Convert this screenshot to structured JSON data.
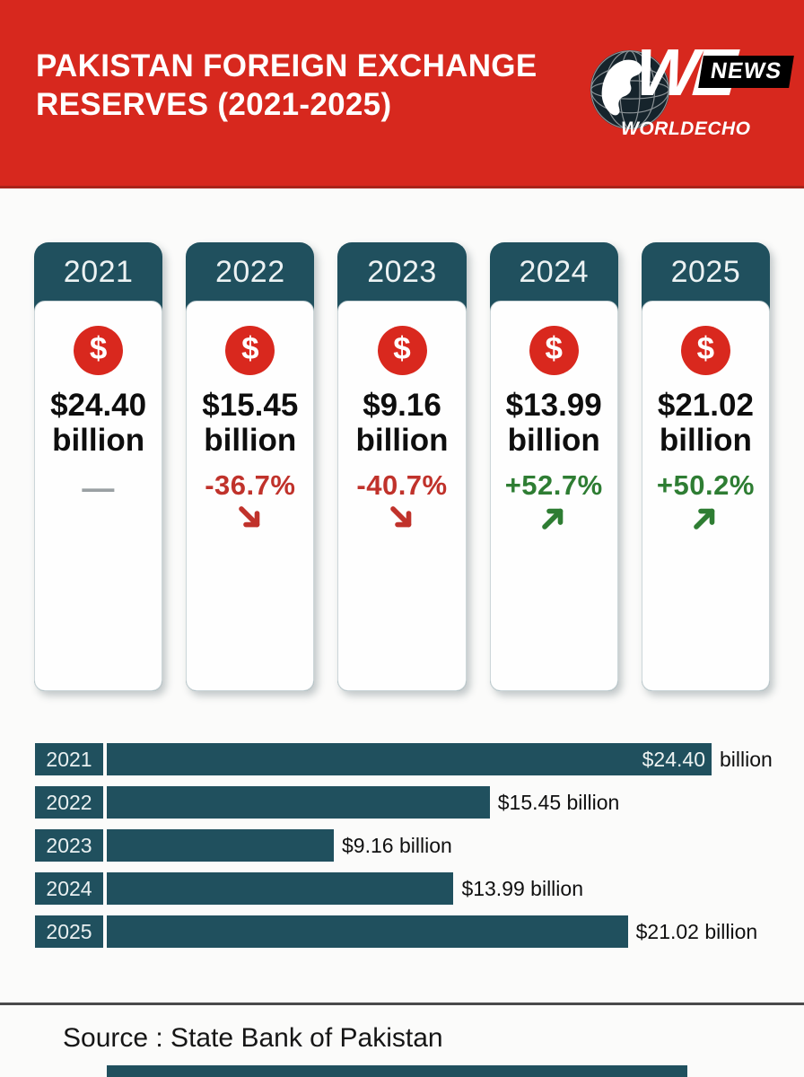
{
  "header": {
    "title": "PAKISTAN FOREIGN EXCHANGE RESERVES (2021-2025)",
    "brand": {
      "we": "WE",
      "news_badge": "NEWS",
      "name": "WORLDECHO"
    }
  },
  "cards": [
    {
      "year": "2021",
      "value": "$24.40",
      "unit": "billion",
      "change": "—",
      "arrow": "",
      "trend": "flat"
    },
    {
      "year": "2022",
      "value": "$15.45",
      "unit": "billion",
      "change": "-36.7%",
      "arrow": "↘",
      "trend": "down"
    },
    {
      "year": "2023",
      "value": "$9.16",
      "unit": "billion",
      "change": "-40.7%",
      "arrow": "↘",
      "trend": "down"
    },
    {
      "year": "2024",
      "value": "$13.99",
      "unit": "billion",
      "change": "+52.7%",
      "arrow": "↗",
      "trend": "up"
    },
    {
      "year": "2025",
      "value": "$21.02",
      "unit": "billion",
      "change": "+50.2%",
      "arrow": "↗",
      "trend": "up"
    }
  ],
  "chart_data": {
    "type": "bar",
    "orientation": "horizontal",
    "title": "",
    "categories": [
      "2021",
      "2022",
      "2023",
      "2024",
      "2025"
    ],
    "values": [
      24.4,
      15.45,
      9.16,
      13.99,
      21.02
    ],
    "unit": "USD billion",
    "xlim": [
      0,
      24.4
    ],
    "bar_color": "#20505e",
    "rows": [
      {
        "year": "2021",
        "inside_label": "$24.40",
        "outside_label": "billion"
      },
      {
        "year": "2022",
        "inside_label": "",
        "outside_label": "$15.45 billion"
      },
      {
        "year": "2023",
        "inside_label": "",
        "outside_label": "$9.16 billion"
      },
      {
        "year": "2024",
        "inside_label": "",
        "outside_label": "$13.99 billion"
      },
      {
        "year": "2025",
        "inside_label": "",
        "outside_label": "$21.02 billion"
      }
    ]
  },
  "footer": {
    "source": "Source : State Bank of Pakistan"
  },
  "colors": {
    "header_red": "#d7281e",
    "teal": "#20505e",
    "negative_red": "#c0322b",
    "positive_green": "#2e7d33",
    "dollar_red": "#d9281e"
  }
}
